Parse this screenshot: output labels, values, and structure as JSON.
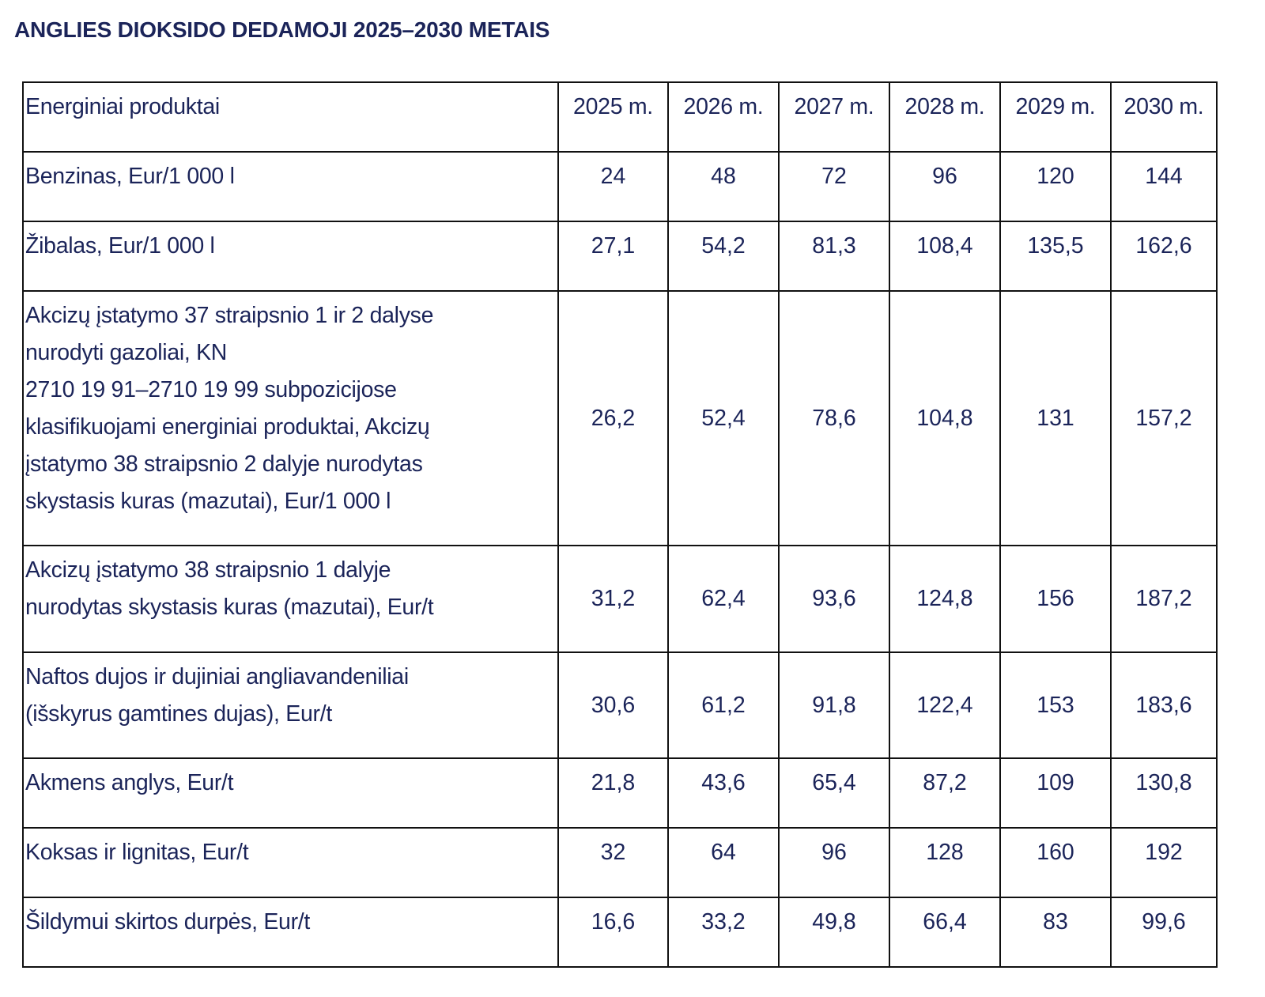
{
  "page": {
    "title": "ANGLIES DIOKSIDO DEDAMOJI 2025–2030 METAIS"
  },
  "table": {
    "header": {
      "product": "Energiniai produktai",
      "years": [
        "2025 m.",
        "2026 m.",
        "2027 m.",
        "2028 m.",
        "2029 m.",
        "2030 m."
      ]
    },
    "rows": [
      {
        "label_lines": [
          "Benzinas, Eur/1 000 l"
        ],
        "values": [
          "24",
          "48",
          "72",
          "96",
          "120",
          "144"
        ]
      },
      {
        "label_lines": [
          "Žibalas, Eur/1 000 l"
        ],
        "values": [
          "27,1",
          "54,2",
          "81,3",
          "108,4",
          "135,5",
          "162,6"
        ]
      },
      {
        "label_lines": [
          "Akcizų įstatymo 37 straipsnio 1 ir 2 dalyse",
          "nurodyti gazoliai, KN",
          "2710 19 91–2710 19 99 subpozicijose",
          "klasifikuojami energiniai produktai, Akcizų",
          "įstatymo 38 straipsnio 2 dalyje nurodytas",
          "skystasis kuras (mazutai), Eur/1 000 l"
        ],
        "values": [
          "26,2",
          "52,4",
          "78,6",
          "104,8",
          "131",
          "157,2"
        ]
      },
      {
        "label_lines": [
          "Akcizų įstatymo 38 straipsnio 1 dalyje",
          "nurodytas skystasis kuras (mazutai), Eur/t"
        ],
        "values": [
          "31,2",
          "62,4",
          "93,6",
          "124,8",
          "156",
          "187,2"
        ]
      },
      {
        "label_lines": [
          "Naftos dujos ir dujiniai angliavandeniliai",
          "(išskyrus gamtines dujas), Eur/t"
        ],
        "values": [
          "30,6",
          "61,2",
          "91,8",
          "122,4",
          "153",
          "183,6"
        ]
      },
      {
        "label_lines": [
          "Akmens anglys, Eur/t"
        ],
        "values": [
          "21,8",
          "43,6",
          "65,4",
          "87,2",
          "109",
          "130,8"
        ]
      },
      {
        "label_lines": [
          "Koksas ir lignitas, Eur/t"
        ],
        "values": [
          "32",
          "64",
          "96",
          "128",
          "160",
          "192"
        ]
      },
      {
        "label_lines": [
          "Šildymui skirtos durpės, Eur/t"
        ],
        "values": [
          "16,6",
          "33,2",
          "49,8",
          "66,4",
          "83",
          "99,6"
        ]
      }
    ]
  }
}
